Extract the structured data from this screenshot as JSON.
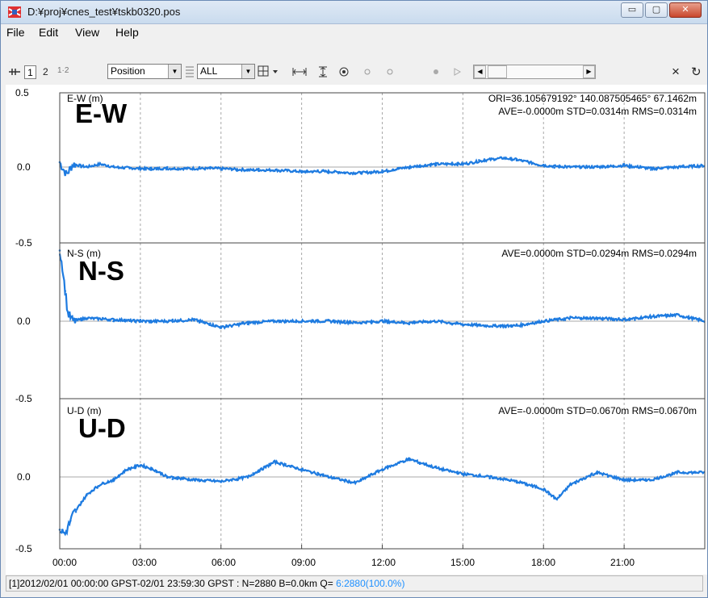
{
  "window": {
    "title": "D:¥proj¥cnes_test¥tskb0320.pos",
    "buttons": {
      "minimize": "▭",
      "maximize": "▢",
      "close": "✕"
    }
  },
  "menu": [
    {
      "label": "File"
    },
    {
      "label": "Edit"
    },
    {
      "label": "View"
    },
    {
      "label": "Help"
    }
  ],
  "toolbar": {
    "btn1": "1",
    "btn2": "2",
    "btn12": "1·2",
    "plot_type": "Position",
    "sat_select": "ALL",
    "close": "×",
    "refresh": "↻"
  },
  "plot": {
    "overlay_labels": [
      "E-W",
      "N-S",
      "U-D"
    ],
    "panels": [
      {
        "axis_label": "E-W (m)",
        "stats_line1": "ORI=36.105679192° 140.087505465° 67.1462m",
        "stats_line2": "AVE=-0.0000m STD=0.0314m RMS=0.0314m"
      },
      {
        "axis_label": "N-S (m)",
        "stats_line1": "AVE=0.0000m STD=0.0294m RMS=0.0294m"
      },
      {
        "axis_label": "U-D (m)",
        "stats_line1": "AVE=-0.0000m STD=0.0670m RMS=0.0670m"
      }
    ],
    "y_ticks": [
      "0.5",
      "0.0",
      "-0.5",
      "0.0",
      "-0.5",
      "0.0",
      "-0.5"
    ],
    "x_ticks": [
      "00:00",
      "03:00",
      "06:00",
      "09:00",
      "12:00",
      "15:00",
      "18:00",
      "21:00"
    ],
    "series_color": "#1e7be0",
    "grid_color": "#a8a8a8"
  },
  "chart_data": [
    {
      "type": "line",
      "ylabel": "E-W (m)",
      "ylim": [
        -0.5,
        0.5
      ],
      "x": [
        0,
        0.25,
        0.5,
        1,
        1.5,
        2,
        3,
        4,
        5,
        6,
        7,
        8,
        9,
        10,
        11,
        12,
        13,
        14,
        15,
        16,
        16.5,
        17,
        18,
        19,
        20,
        21,
        22,
        23,
        24
      ],
      "values": [
        0.03,
        -0.05,
        0.02,
        0.0,
        0.02,
        0.0,
        -0.01,
        -0.01,
        -0.01,
        -0.01,
        -0.02,
        -0.02,
        -0.03,
        -0.03,
        -0.04,
        -0.03,
        0.0,
        0.02,
        0.02,
        0.05,
        0.06,
        0.05,
        0.01,
        0.0,
        0.0,
        0.01,
        -0.01,
        0.0,
        0.01
      ]
    },
    {
      "type": "line",
      "ylabel": "N-S (m)",
      "ylim": [
        -0.5,
        0.5
      ],
      "x": [
        0,
        0.1,
        0.2,
        0.3,
        0.5,
        1,
        2,
        3,
        4,
        5,
        6,
        7,
        8,
        9,
        10,
        11,
        12,
        13,
        14,
        15,
        16,
        17,
        18,
        19,
        20,
        21,
        22,
        23,
        24
      ],
      "values": [
        0.45,
        0.35,
        0.2,
        0.05,
        0.0,
        0.02,
        0.01,
        0.0,
        0.0,
        0.01,
        -0.04,
        -0.01,
        0.0,
        0.0,
        0.0,
        -0.01,
        0.0,
        -0.01,
        0.0,
        -0.02,
        -0.03,
        -0.03,
        0.0,
        0.02,
        0.02,
        0.01,
        0.03,
        0.04,
        0.0
      ]
    },
    {
      "type": "line",
      "ylabel": "U-D (m)",
      "ylim": [
        -0.5,
        0.5
      ],
      "x": [
        0,
        0.2,
        0.5,
        1,
        1.5,
        2,
        2.5,
        3,
        3.5,
        4,
        5,
        6,
        7,
        8,
        9,
        10,
        11,
        12,
        13,
        14,
        15,
        16,
        17,
        18,
        18.5,
        19,
        20,
        21,
        22,
        23,
        24
      ],
      "values": [
        -0.35,
        -0.38,
        -0.25,
        -0.12,
        -0.05,
        -0.02,
        0.05,
        0.08,
        0.05,
        0.0,
        -0.02,
        -0.03,
        0.0,
        0.1,
        0.05,
        0.0,
        -0.04,
        0.05,
        0.12,
        0.06,
        0.02,
        0.0,
        -0.03,
        -0.08,
        -0.15,
        -0.05,
        0.03,
        -0.02,
        -0.02,
        0.03,
        0.03
      ]
    }
  ],
  "status": {
    "text": "[1]2012/02/01 00:00:00 GPST-02/01 23:59:30 GPST : N=2880 B=0.0km Q= ",
    "q_text": "6:2880(100.0%)"
  }
}
